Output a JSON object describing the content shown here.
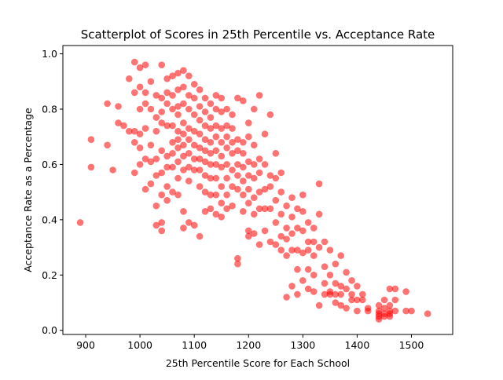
{
  "chart_data": {
    "type": "scatter",
    "title": "Scatterplot of Scores in 25th Percentile vs. Acceptance Rate",
    "xlabel": "25th Percentile Score for Each School",
    "ylabel": "Acceptance Rate as a Percentage",
    "xlim": [
      858,
      1576
    ],
    "ylim": [
      -0.015,
      1.03
    ],
    "xticks": [
      900,
      1000,
      1100,
      1200,
      1300,
      1400,
      1500
    ],
    "yticks": [
      0.0,
      0.2,
      0.4,
      0.6,
      0.8,
      1.0
    ],
    "xtick_labels": [
      "900",
      "1000",
      "1100",
      "1200",
      "1300",
      "1400",
      "1500"
    ],
    "ytick_labels": [
      "0.0",
      "0.2",
      "0.4",
      "0.6",
      "0.8",
      "1.0"
    ],
    "grid": false,
    "marker_color": "#ff0000",
    "marker_alpha": 0.55,
    "series": [
      {
        "x": [
          890,
          910,
          910,
          940,
          940,
          950,
          960,
          960,
          970,
          980,
          980,
          990,
          990,
          990,
          990,
          990,
          1000,
          1000,
          1000,
          1000,
          1000,
          1000,
          1010,
          1010,
          1010,
          1010,
          1010,
          1010,
          1020,
          1020,
          1020,
          1020,
          1020,
          1030,
          1030,
          1030,
          1030,
          1030,
          1030,
          1030,
          1040,
          1040,
          1040,
          1040,
          1040,
          1040,
          1040,
          1040,
          1040,
          1050,
          1050,
          1050,
          1050,
          1050,
          1050,
          1050,
          1050,
          1060,
          1060,
          1060,
          1060,
          1060,
          1060,
          1060,
          1060,
          1070,
          1070,
          1070,
          1070,
          1070,
          1070,
          1070,
          1070,
          1070,
          1070,
          1080,
          1080,
          1080,
          1080,
          1080,
          1080,
          1080,
          1080,
          1080,
          1080,
          1090,
          1090,
          1090,
          1090,
          1090,
          1090,
          1090,
          1090,
          1090,
          1100,
          1100,
          1100,
          1100,
          1100,
          1100,
          1100,
          1100,
          1110,
          1110,
          1110,
          1110,
          1110,
          1110,
          1110,
          1110,
          1110,
          1120,
          1120,
          1120,
          1120,
          1120,
          1120,
          1120,
          1120,
          1120,
          1130,
          1130,
          1130,
          1130,
          1130,
          1130,
          1130,
          1130,
          1130,
          1140,
          1140,
          1140,
          1140,
          1140,
          1140,
          1140,
          1140,
          1140,
          1150,
          1150,
          1150,
          1150,
          1150,
          1150,
          1150,
          1150,
          1150,
          1160,
          1160,
          1160,
          1160,
          1160,
          1160,
          1160,
          1160,
          1170,
          1170,
          1170,
          1170,
          1170,
          1170,
          1170,
          1180,
          1180,
          1180,
          1180,
          1180,
          1180,
          1180,
          1180,
          1190,
          1190,
          1190,
          1190,
          1190,
          1190,
          1190,
          1200,
          1200,
          1200,
          1200,
          1200,
          1200,
          1200,
          1200,
          1210,
          1210,
          1210,
          1210,
          1210,
          1210,
          1210,
          1220,
          1220,
          1220,
          1220,
          1220,
          1220,
          1230,
          1230,
          1230,
          1230,
          1230,
          1240,
          1240,
          1240,
          1240,
          1240,
          1250,
          1250,
          1250,
          1250,
          1250,
          1260,
          1260,
          1260,
          1260,
          1260,
          1270,
          1270,
          1270,
          1270,
          1270,
          1280,
          1280,
          1280,
          1280,
          1280,
          1290,
          1290,
          1290,
          1290,
          1290,
          1300,
          1300,
          1300,
          1300,
          1300,
          1310,
          1310,
          1310,
          1310,
          1310,
          1320,
          1320,
          1320,
          1320,
          1320,
          1330,
          1330,
          1330,
          1330,
          1340,
          1340,
          1340,
          1340,
          1350,
          1350,
          1350,
          1350,
          1360,
          1360,
          1360,
          1360,
          1370,
          1370,
          1370,
          1370,
          1380,
          1380,
          1380,
          1390,
          1390,
          1390,
          1400,
          1400,
          1400,
          1410,
          1410,
          1420,
          1420,
          1440,
          1440,
          1440,
          1440,
          1440,
          1450,
          1450,
          1450,
          1450,
          1460,
          1460,
          1460,
          1460,
          1460,
          1470,
          1470,
          1470,
          1490,
          1490,
          1500,
          1530
        ],
        "y": [
          0.39,
          0.69,
          0.59,
          0.82,
          0.67,
          0.58,
          0.81,
          0.75,
          0.74,
          0.91,
          0.72,
          0.97,
          0.86,
          0.72,
          0.68,
          0.57,
          0.95,
          0.88,
          0.8,
          0.71,
          0.66,
          0.6,
          0.96,
          0.86,
          0.82,
          0.73,
          0.62,
          0.51,
          0.9,
          0.8,
          0.67,
          0.61,
          0.53,
          0.85,
          0.77,
          0.72,
          0.62,
          0.56,
          0.45,
          0.38,
          0.96,
          0.84,
          0.79,
          0.75,
          0.65,
          0.57,
          0.49,
          0.39,
          0.36,
          0.91,
          0.86,
          0.82,
          0.74,
          0.63,
          0.59,
          0.52,
          0.47,
          0.92,
          0.85,
          0.8,
          0.74,
          0.68,
          0.64,
          0.59,
          0.5,
          0.93,
          0.87,
          0.81,
          0.78,
          0.72,
          0.69,
          0.66,
          0.61,
          0.55,
          0.49,
          0.94,
          0.88,
          0.82,
          0.75,
          0.71,
          0.67,
          0.63,
          0.58,
          0.43,
          0.37,
          0.92,
          0.85,
          0.8,
          0.73,
          0.69,
          0.64,
          0.59,
          0.54,
          0.39,
          0.89,
          0.84,
          0.78,
          0.72,
          0.67,
          0.62,
          0.58,
          0.38,
          0.87,
          0.81,
          0.76,
          0.71,
          0.66,
          0.62,
          0.58,
          0.52,
          0.34,
          0.84,
          0.79,
          0.74,
          0.69,
          0.65,
          0.61,
          0.56,
          0.5,
          0.43,
          0.82,
          0.77,
          0.73,
          0.68,
          0.64,
          0.6,
          0.55,
          0.49,
          0.44,
          0.85,
          0.8,
          0.74,
          0.7,
          0.65,
          0.6,
          0.55,
          0.49,
          0.42,
          0.84,
          0.79,
          0.73,
          0.68,
          0.63,
          0.59,
          0.52,
          0.46,
          0.41,
          0.8,
          0.74,
          0.7,
          0.66,
          0.6,
          0.55,
          0.49,
          0.44,
          0.78,
          0.73,
          0.68,
          0.64,
          0.58,
          0.52,
          0.45,
          0.84,
          0.69,
          0.65,
          0.6,
          0.56,
          0.51,
          0.26,
          0.24,
          0.83,
          0.68,
          0.64,
          0.59,
          0.54,
          0.49,
          0.43,
          0.75,
          0.7,
          0.61,
          0.56,
          0.51,
          0.46,
          0.36,
          0.34,
          0.8,
          0.67,
          0.6,
          0.55,
          0.48,
          0.42,
          0.35,
          0.85,
          0.62,
          0.57,
          0.5,
          0.44,
          0.31,
          0.71,
          0.6,
          0.51,
          0.44,
          0.36,
          0.78,
          0.56,
          0.52,
          0.44,
          0.32,
          0.64,
          0.55,
          0.47,
          0.39,
          0.31,
          0.57,
          0.5,
          0.42,
          0.34,
          0.29,
          0.45,
          0.37,
          0.33,
          0.27,
          0.12,
          0.48,
          0.41,
          0.35,
          0.29,
          0.16,
          0.44,
          0.37,
          0.29,
          0.22,
          0.13,
          0.49,
          0.43,
          0.36,
          0.28,
          0.18,
          0.39,
          0.32,
          0.29,
          0.22,
          0.15,
          0.37,
          0.32,
          0.27,
          0.2,
          0.14,
          0.53,
          0.42,
          0.3,
          0.09,
          0.32,
          0.23,
          0.17,
          0.13,
          0.29,
          0.2,
          0.14,
          0.13,
          0.24,
          0.17,
          0.13,
          0.1,
          0.27,
          0.16,
          0.13,
          0.09,
          0.21,
          0.15,
          0.08,
          0.18,
          0.13,
          0.11,
          0.16,
          0.11,
          0.07,
          0.13,
          0.11,
          0.08,
          0.07,
          0.09,
          0.07,
          0.06,
          0.05,
          0.04,
          0.11,
          0.08,
          0.06,
          0.05,
          0.15,
          0.09,
          0.07,
          0.06,
          0.05,
          0.15,
          0.11,
          0.07,
          0.14,
          0.07,
          0.07,
          0.06
        ]
      }
    ]
  }
}
